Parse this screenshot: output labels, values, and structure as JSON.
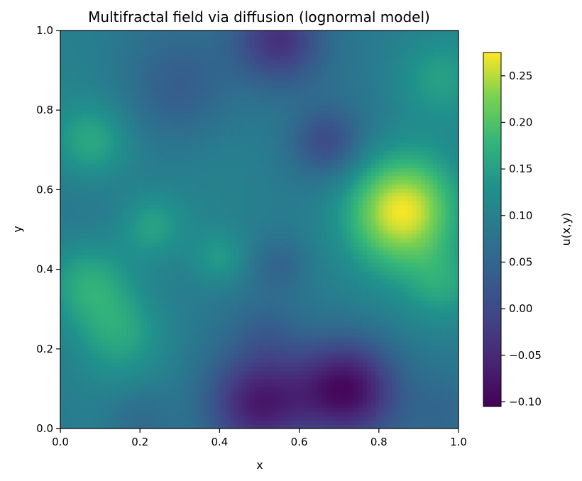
{
  "chart_data": {
    "type": "heatmap",
    "title": "Multifractal field via diffusion (lognormal model)",
    "xlabel": "x",
    "ylabel": "y",
    "xlim": [
      0.0,
      1.0
    ],
    "ylim": [
      0.0,
      1.0
    ],
    "xticks": [
      "0.0",
      "0.2",
      "0.4",
      "0.6",
      "0.8",
      "1.0"
    ],
    "yticks": [
      "0.0",
      "0.2",
      "0.4",
      "0.6",
      "0.8",
      "1.0"
    ],
    "colorbar": {
      "label": "u(x,y)",
      "colormap": "viridis",
      "range": [
        -0.105,
        0.275
      ],
      "ticks": [
        "0.25",
        "0.20",
        "0.15",
        "0.10",
        "0.05",
        "0.00",
        "−0.05",
        "−0.10"
      ],
      "tick_values": [
        0.25,
        0.2,
        0.15,
        0.1,
        0.05,
        0.0,
        -0.05,
        -0.1
      ]
    },
    "grid": false,
    "field": {
      "baseline": 0.09,
      "features": [
        {
          "x": 0.86,
          "y": 0.55,
          "amplitude": 0.18,
          "width": 0.1
        },
        {
          "x": 0.07,
          "y": 0.37,
          "amplitude": 0.08,
          "width": 0.08
        },
        {
          "x": 0.08,
          "y": 0.72,
          "amplitude": 0.07,
          "width": 0.07
        },
        {
          "x": 0.15,
          "y": 0.24,
          "amplitude": 0.06,
          "width": 0.08
        },
        {
          "x": 0.23,
          "y": 0.51,
          "amplitude": 0.06,
          "width": 0.06
        },
        {
          "x": 0.4,
          "y": 0.43,
          "amplitude": 0.05,
          "width": 0.05
        },
        {
          "x": 0.97,
          "y": 0.36,
          "amplitude": 0.06,
          "width": 0.07
        },
        {
          "x": 0.95,
          "y": 0.88,
          "amplitude": 0.05,
          "width": 0.08
        },
        {
          "x": 0.72,
          "y": 0.1,
          "amplitude": -0.18,
          "width": 0.09
        },
        {
          "x": 0.5,
          "y": 0.06,
          "amplitude": -0.15,
          "width": 0.09
        },
        {
          "x": 0.55,
          "y": 0.98,
          "amplitude": -0.13,
          "width": 0.08
        },
        {
          "x": 0.67,
          "y": 0.72,
          "amplitude": -0.08,
          "width": 0.06
        },
        {
          "x": 0.3,
          "y": 0.85,
          "amplitude": -0.05,
          "width": 0.09
        },
        {
          "x": 0.55,
          "y": 0.41,
          "amplitude": -0.04,
          "width": 0.05
        },
        {
          "x": 0.52,
          "y": 0.24,
          "amplitude": -0.03,
          "width": 0.06
        },
        {
          "x": 0.2,
          "y": 0.02,
          "amplitude": -0.04,
          "width": 0.06
        },
        {
          "x": 0.97,
          "y": 0.05,
          "amplitude": -0.03,
          "width": 0.06
        }
      ]
    }
  }
}
